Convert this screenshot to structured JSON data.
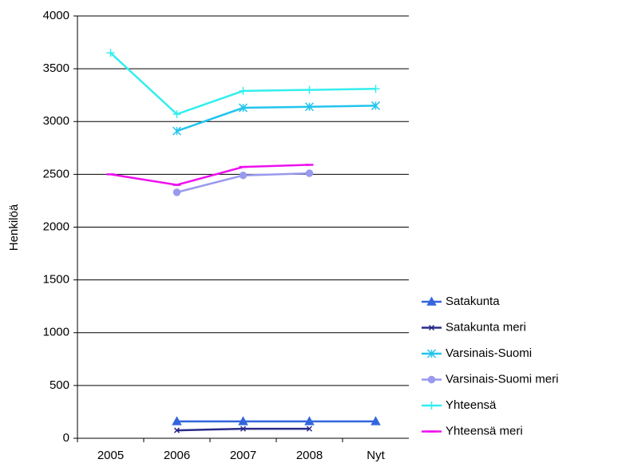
{
  "chart_data": {
    "type": "line",
    "y_label": "Henkilöä",
    "categories": [
      "2005",
      "2006",
      "2007",
      "2008",
      "Nyt"
    ],
    "series": [
      {
        "name": "Satakunta",
        "color": "#3366dd",
        "marker": "triangle",
        "values": [
          null,
          160,
          160,
          160,
          160
        ]
      },
      {
        "name": "Satakunta meri",
        "color": "#2a2a8a",
        "marker": "x",
        "values": [
          null,
          75,
          90,
          90,
          null
        ]
      },
      {
        "name": "Varsinais-Suomi",
        "color": "#22c4ee",
        "marker": "star",
        "values": [
          null,
          2910,
          3130,
          3140,
          3150
        ]
      },
      {
        "name": "Varsinais-Suomi meri",
        "color": "#9999ee",
        "marker": "circle",
        "values": [
          null,
          2330,
          2490,
          2510,
          null
        ]
      },
      {
        "name": "Yhteensä",
        "color": "#33eeee",
        "marker": "plus",
        "values": [
          3650,
          3070,
          3290,
          3300,
          3310
        ]
      },
      {
        "name": "Yhteensä meri",
        "color": "#ee11ee",
        "marker": "dash",
        "values": [
          2500,
          2400,
          2570,
          2590,
          null
        ]
      }
    ],
    "ylim": [
      0,
      4000
    ],
    "yticks": [
      0,
      500,
      1000,
      1500,
      2000,
      2500,
      3000,
      3500,
      4000
    ],
    "grid": true,
    "legend": "right"
  }
}
